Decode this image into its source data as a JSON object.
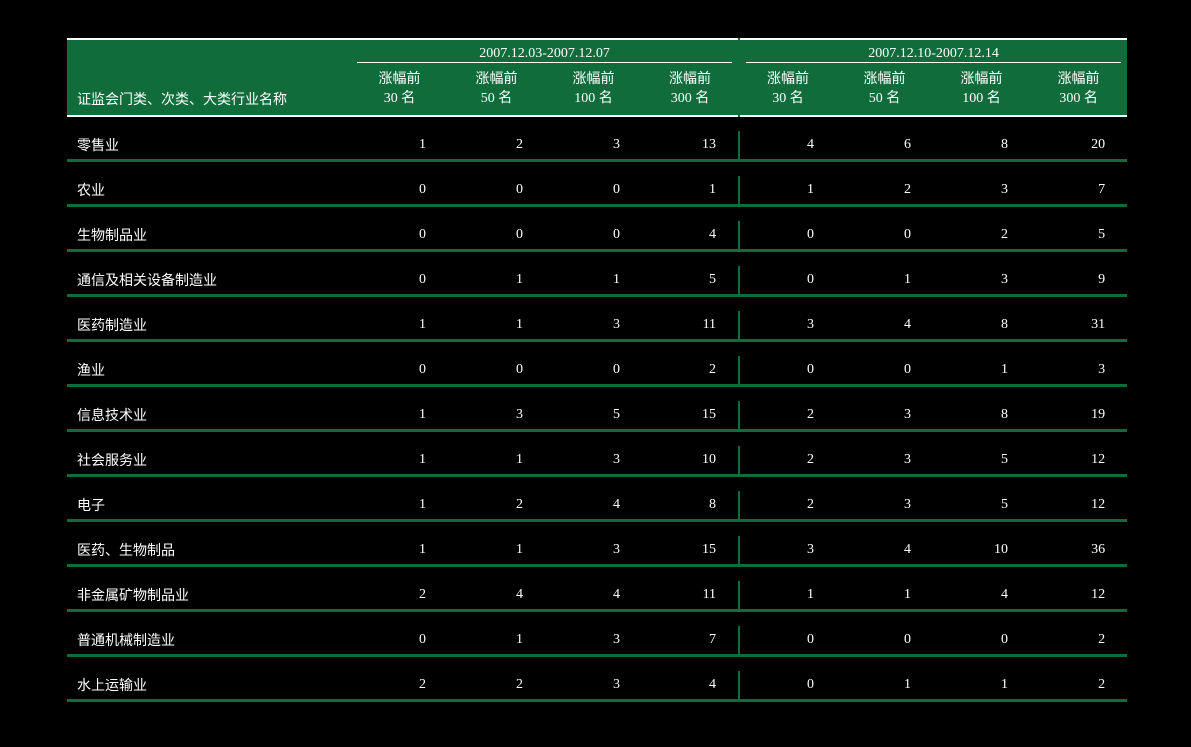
{
  "header": {
    "row_label_title": "证监会门类、次类、大类行业名称",
    "periods": [
      "2007.12.03-2007.12.07",
      "2007.12.10-2007.12.14"
    ],
    "subcolumns": [
      {
        "line1": "涨幅前",
        "line2": "30 名"
      },
      {
        "line1": "涨幅前",
        "line2": "50 名"
      },
      {
        "line1": "涨幅前",
        "line2": "100 名"
      },
      {
        "line1": "涨幅前",
        "line2": "300 名"
      }
    ]
  },
  "rows": [
    {
      "name": "零售业",
      "p1": [
        1,
        2,
        3,
        13
      ],
      "p2": [
        4,
        6,
        8,
        20
      ]
    },
    {
      "name": "农业",
      "p1": [
        0,
        0,
        0,
        1
      ],
      "p2": [
        1,
        2,
        3,
        7
      ]
    },
    {
      "name": "生物制品业",
      "p1": [
        0,
        0,
        0,
        4
      ],
      "p2": [
        0,
        0,
        2,
        5
      ]
    },
    {
      "name": "通信及相关设备制造业",
      "p1": [
        0,
        1,
        1,
        5
      ],
      "p2": [
        0,
        1,
        3,
        9
      ]
    },
    {
      "name": "医药制造业",
      "p1": [
        1,
        1,
        3,
        11
      ],
      "p2": [
        3,
        4,
        8,
        31
      ]
    },
    {
      "name": "渔业",
      "p1": [
        0,
        0,
        0,
        2
      ],
      "p2": [
        0,
        0,
        1,
        3
      ]
    },
    {
      "name": "信息技术业",
      "p1": [
        1,
        3,
        5,
        15
      ],
      "p2": [
        2,
        3,
        8,
        19
      ]
    },
    {
      "name": "社会服务业",
      "p1": [
        1,
        1,
        3,
        10
      ],
      "p2": [
        2,
        3,
        5,
        12
      ]
    },
    {
      "name": "电子",
      "p1": [
        1,
        2,
        4,
        8
      ],
      "p2": [
        2,
        3,
        5,
        12
      ]
    },
    {
      "name": "医药、生物制品",
      "p1": [
        1,
        1,
        3,
        15
      ],
      "p2": [
        3,
        4,
        10,
        36
      ]
    },
    {
      "name": "非金属矿物制品业",
      "p1": [
        2,
        4,
        4,
        11
      ],
      "p2": [
        1,
        1,
        4,
        12
      ]
    },
    {
      "name": "普通机械制造业",
      "p1": [
        0,
        1,
        3,
        7
      ],
      "p2": [
        0,
        0,
        0,
        2
      ]
    },
    {
      "name": "水上运输业",
      "p1": [
        2,
        2,
        3,
        4
      ],
      "p2": [
        0,
        1,
        1,
        2
      ]
    }
  ],
  "style": {
    "background_color": "#000000",
    "header_bg": "#106c3a",
    "row_underline_color": "#106c3a",
    "text_color": "#ffffff",
    "font_family": "SimSun",
    "font_size_pt": 11
  }
}
